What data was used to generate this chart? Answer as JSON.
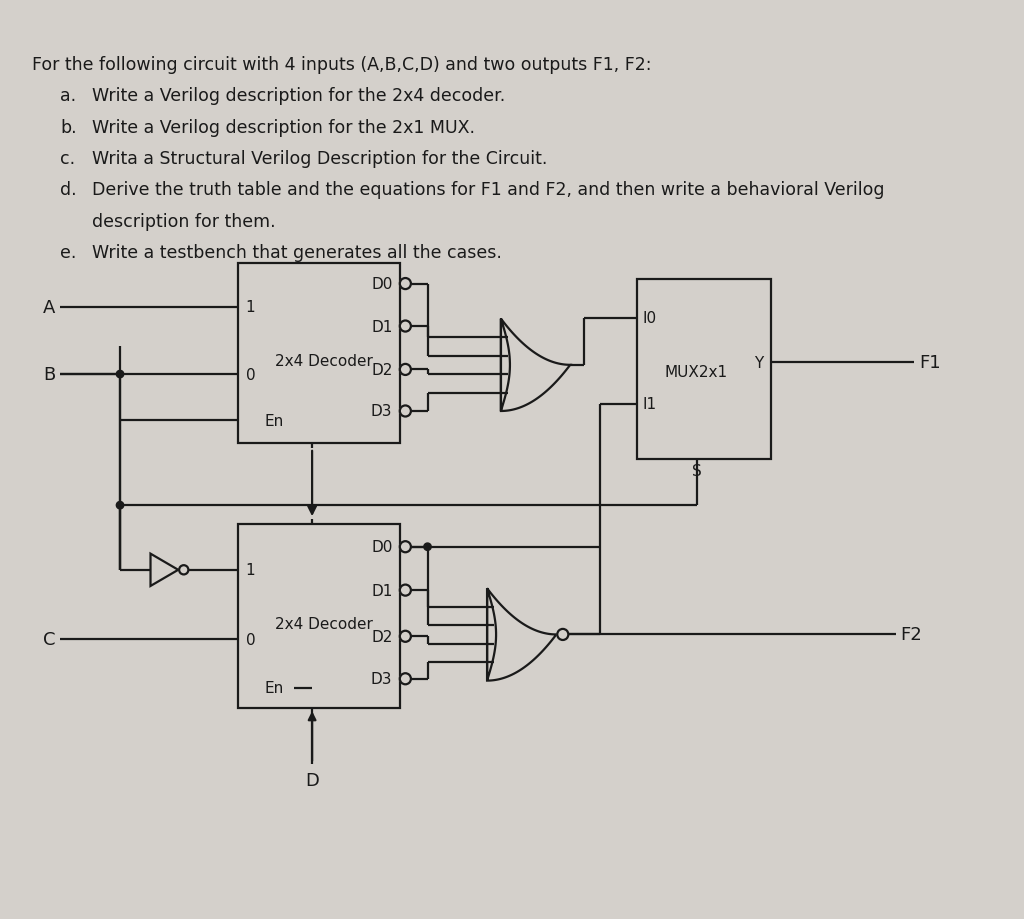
{
  "bg_color": "#d4d0cb",
  "text_color": "#1a1a1a",
  "title_line": "For the following circuit with 4 inputs (A,B,C,D) and two outputs F1, F2:",
  "items": [
    [
      "a.",
      "Write a Verilog description for the 2x4 decoder."
    ],
    [
      "b.",
      "Write a Verilog description for the 2x1 MUX."
    ],
    [
      "c.",
      "Writa a Structural Verilog Description for the Circuit."
    ],
    [
      "d.",
      "Derive the truth table and the equations for F1 and F2, and then write a behavioral Verilog\n         description for them."
    ],
    [
      "e.",
      "Write a testbench that generates all the cases."
    ]
  ],
  "font_size_title": 12.5,
  "font_size_item": 12.5,
  "lw": 1.6
}
